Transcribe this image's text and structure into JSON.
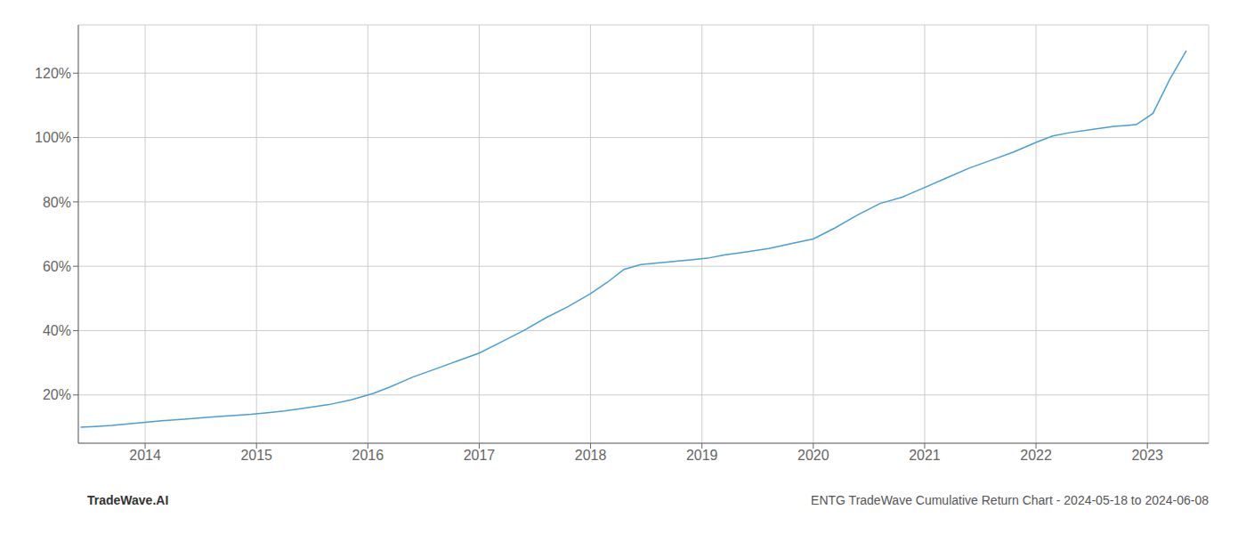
{
  "chart_data": {
    "type": "line",
    "title": "ENTG TradeWave Cumulative Return Chart - 2024-05-18 to 2024-06-08",
    "annotations": [
      "TradeWave.AI"
    ],
    "color": "#4a9fd4",
    "grid": true,
    "x": [
      2013.42,
      2013.55,
      2013.7,
      2013.85,
      2014.0,
      2014.15,
      2014.35,
      2014.55,
      2014.75,
      2014.95,
      2015.1,
      2015.25,
      2015.45,
      2015.65,
      2015.85,
      2016.05,
      2016.2,
      2016.4,
      2016.6,
      2016.8,
      2017.0,
      2017.2,
      2017.4,
      2017.6,
      2017.8,
      2018.0,
      2018.15,
      2018.3,
      2018.45,
      2018.6,
      2018.75,
      2018.9,
      2019.05,
      2019.2,
      2019.4,
      2019.6,
      2019.8,
      2020.0,
      2020.2,
      2020.4,
      2020.6,
      2020.8,
      2021.0,
      2021.2,
      2021.4,
      2021.6,
      2021.8,
      2022.0,
      2022.15,
      2022.3,
      2022.5,
      2022.7,
      2022.9,
      2023.05,
      2023.2,
      2023.35
    ],
    "values": [
      10,
      10.2,
      10.5,
      11.0,
      11.5,
      12.0,
      12.5,
      13.0,
      13.5,
      14.0,
      14.5,
      15.0,
      16.0,
      17.0,
      18.5,
      20.5,
      22.5,
      25.5,
      28.0,
      30.5,
      33.0,
      36.5,
      40.0,
      44.0,
      47.5,
      51.5,
      55.0,
      59.0,
      60.5,
      61.0,
      61.5,
      62.0,
      62.5,
      63.5,
      64.5,
      65.5,
      67.0,
      68.5,
      72.0,
      76.0,
      79.5,
      81.5,
      84.5,
      87.5,
      90.5,
      93.0,
      95.5,
      98.5,
      100.5,
      101.5,
      102.5,
      103.5,
      104.0,
      107.5,
      118.0,
      127.0
    ],
    "xlim": [
      2013.4,
      2023.55
    ],
    "xticks": [
      2014,
      2015,
      2016,
      2017,
      2018,
      2019,
      2020,
      2021,
      2022,
      2023
    ],
    "ylim": [
      5,
      135
    ],
    "yticks": [
      {
        "value": 20,
        "label": "20%"
      },
      {
        "value": 40,
        "label": "40%"
      },
      {
        "value": 60,
        "label": "60%"
      },
      {
        "value": 80,
        "label": "80%"
      },
      {
        "value": 100,
        "label": "100%"
      },
      {
        "value": 120,
        "label": "120%"
      }
    ]
  }
}
